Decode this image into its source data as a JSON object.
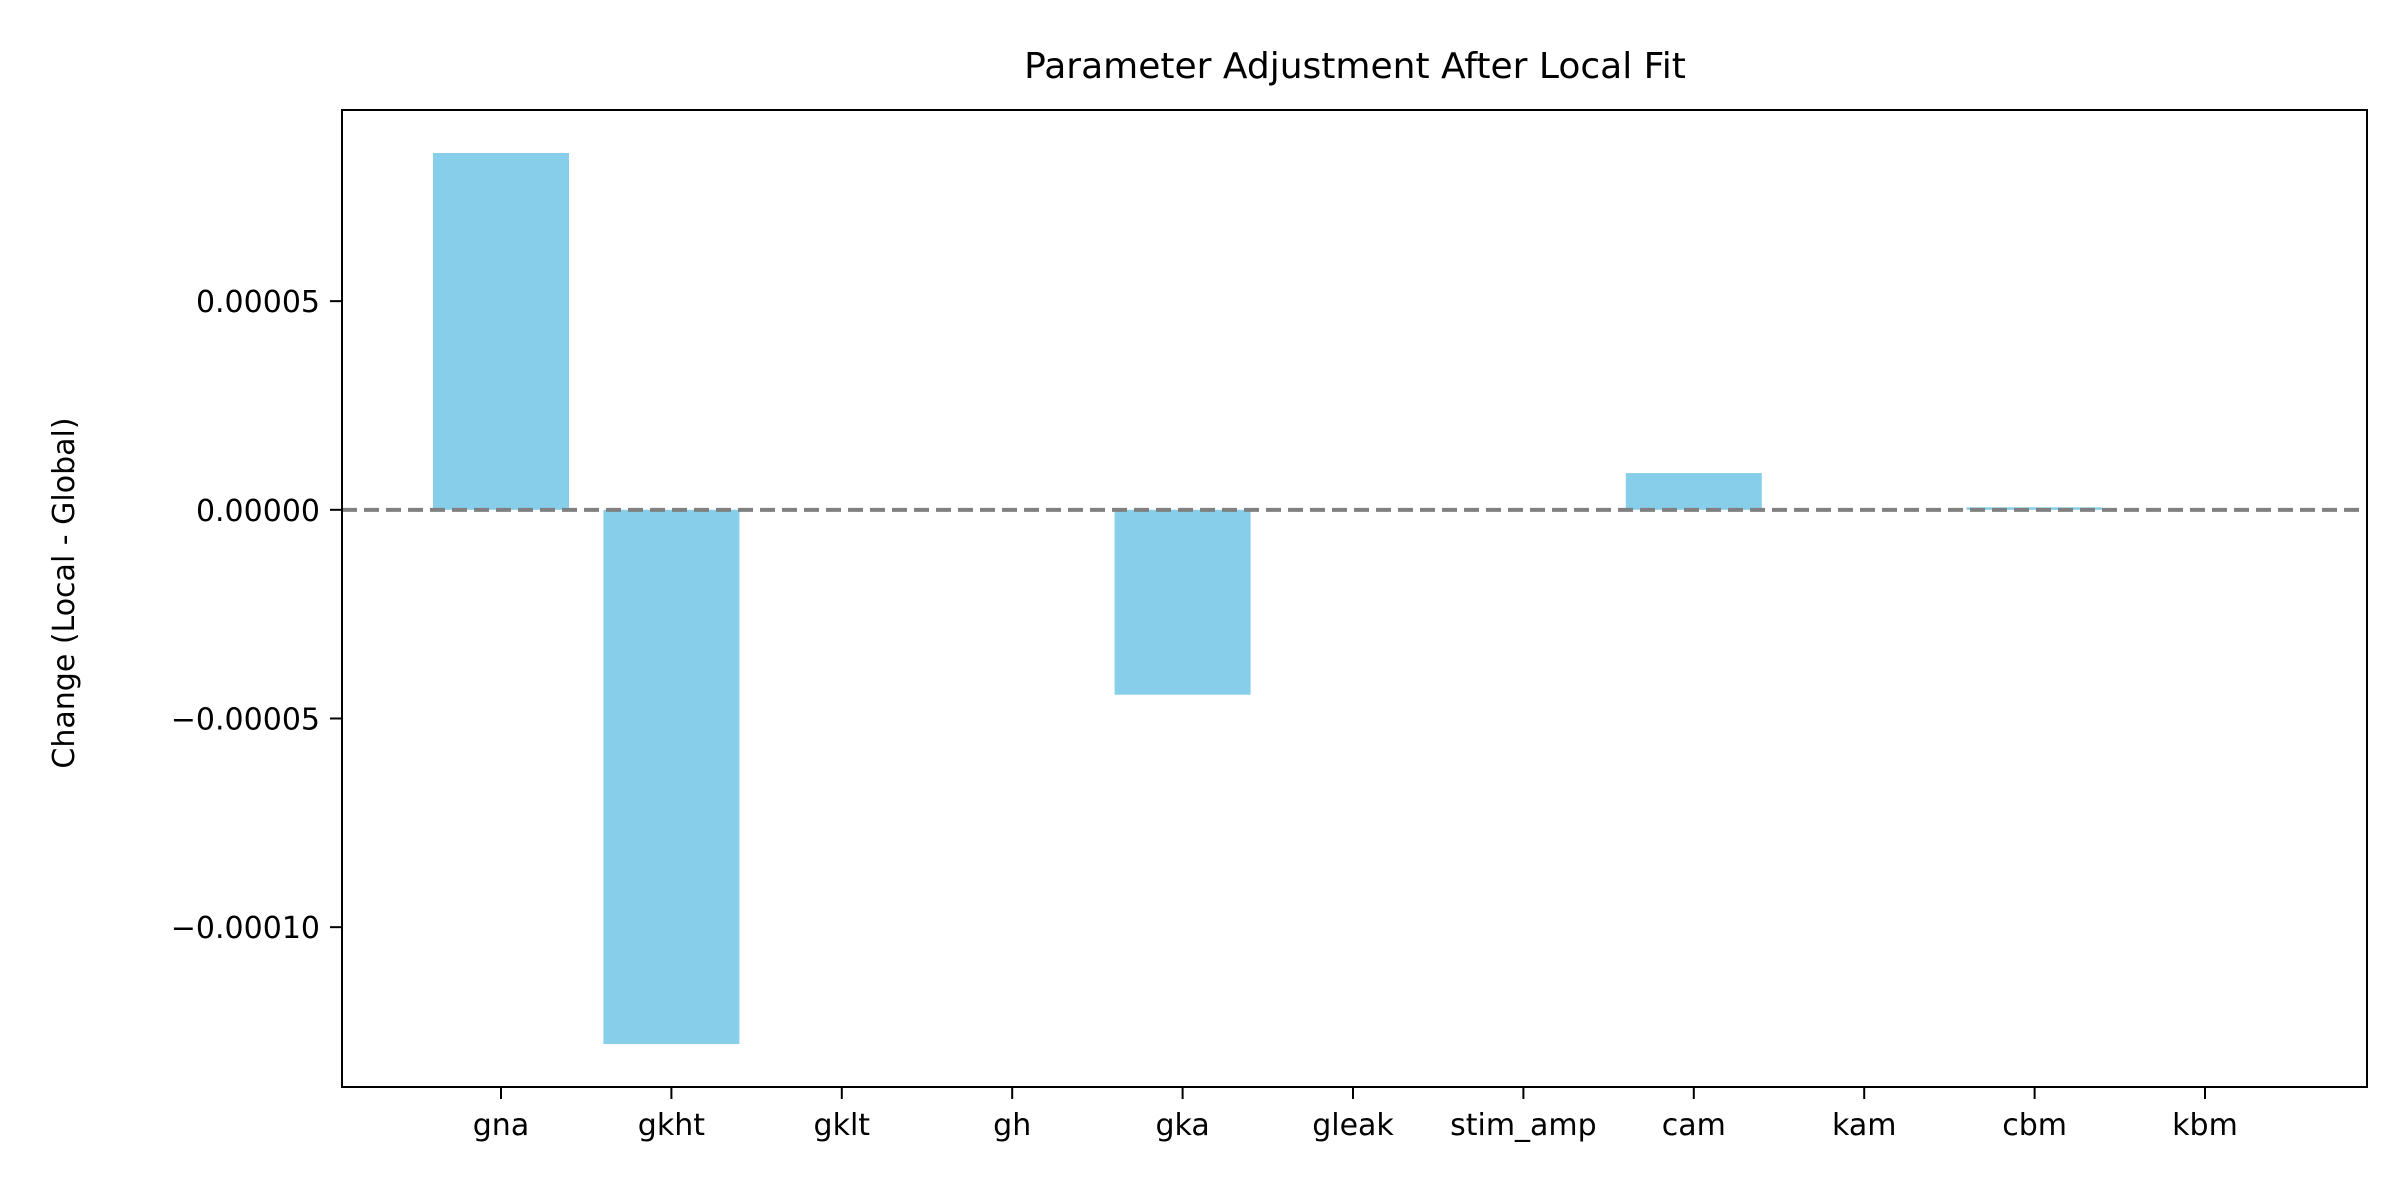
{
  "chart_data": {
    "type": "bar",
    "title": "Parameter Adjustment After Local Fit",
    "xlabel": "",
    "ylabel": "Change (Local - Global)",
    "categories": [
      "gna",
      "gkht",
      "gklt",
      "gh",
      "gka",
      "gleak",
      "stim_amp",
      "cam",
      "kam",
      "cbm",
      "kbm"
    ],
    "values": [
      8.55e-05,
      -0.000128,
      0.0,
      0.0,
      -4.43e-05,
      0.0,
      0.0,
      8.8e-06,
      0.0,
      6e-07,
      0.0
    ],
    "ylim": [
      -0.0001383,
      9.58e-05
    ],
    "yticks": [
      -0.0001,
      -5e-05,
      0.0,
      5e-05
    ],
    "ytick_labels": [
      "−0.00010",
      "−0.00005",
      "0.00000",
      "0.00005"
    ],
    "reference_line": {
      "y": 0.0,
      "style": "dashed",
      "color": "#808080"
    },
    "bar_color": "#87ceeb",
    "grid": false,
    "legend": "none"
  }
}
